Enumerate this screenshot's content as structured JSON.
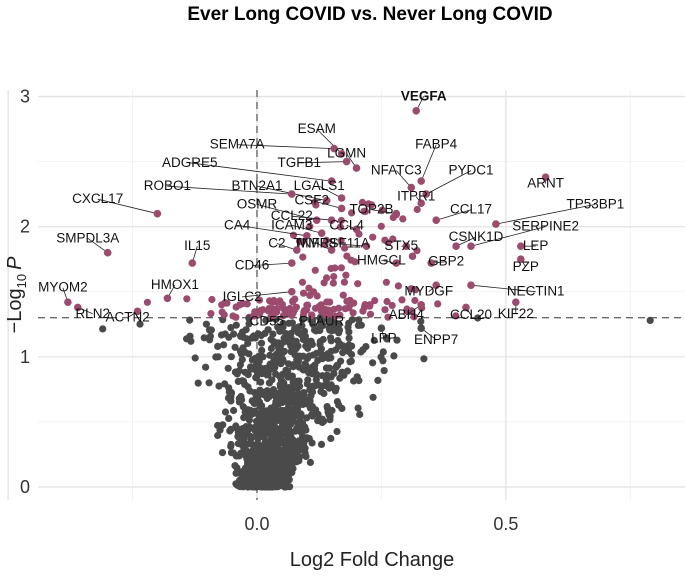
{
  "chart_data": {
    "type": "scatter",
    "title": "Ever Long COVID vs. Never Long COVID",
    "xlabel": "Log2 Fold Change",
    "ylabel_prefix": "−Log",
    "ylabel_sub": "10",
    "ylabel_var": "P",
    "xlim": [
      -0.44,
      0.86
    ],
    "ylim": [
      -0.1,
      3.05
    ],
    "xticks": [
      {
        "v": 0.0,
        "label": "0.0"
      },
      {
        "v": 0.5,
        "label": "0.5"
      }
    ],
    "yticks": [
      {
        "v": 0,
        "label": "0"
      },
      {
        "v": 1,
        "label": "1"
      },
      {
        "v": 2,
        "label": "2"
      },
      {
        "v": 3,
        "label": "3"
      }
    ],
    "threshold_y": 1.3,
    "colors": {
      "significant": "#9b4c6e",
      "nonsignificant": "#4a4a4a",
      "highlight": "#c8505a"
    },
    "labeled_points": [
      {
        "label": "VEGFA",
        "x": 0.32,
        "y": 2.89,
        "lx": 0.335,
        "ly": 2.97,
        "hl": true
      },
      {
        "label": "ESAM",
        "x": 0.17,
        "y": 2.56,
        "lx": 0.12,
        "ly": 2.72
      },
      {
        "label": "SEMA7A",
        "x": 0.155,
        "y": 2.6,
        "lx": -0.04,
        "ly": 2.6
      },
      {
        "label": "LGMN",
        "x": 0.2,
        "y": 2.45,
        "lx": 0.18,
        "ly": 2.53
      },
      {
        "label": "FABP4",
        "x": 0.33,
        "y": 2.35,
        "lx": 0.36,
        "ly": 2.6
      },
      {
        "label": "TGFB1",
        "x": 0.18,
        "y": 2.5,
        "lx": 0.085,
        "ly": 2.46
      },
      {
        "label": "ADGRE5",
        "x": 0.15,
        "y": 2.35,
        "lx": -0.135,
        "ly": 2.46
      },
      {
        "label": "NFATC3",
        "x": 0.31,
        "y": 2.3,
        "lx": 0.28,
        "ly": 2.4
      },
      {
        "label": "PYDC1",
        "x": 0.34,
        "y": 2.25,
        "lx": 0.43,
        "ly": 2.4
      },
      {
        "label": "BTN2A1",
        "x": 0.14,
        "y": 2.2,
        "lx": 0.0,
        "ly": 2.28
      },
      {
        "label": "LGALS1",
        "x": 0.17,
        "y": 2.22,
        "lx": 0.125,
        "ly": 2.28
      },
      {
        "label": "ROBO1",
        "x": 0.07,
        "y": 2.25,
        "lx": -0.18,
        "ly": 2.28
      },
      {
        "label": "ARNT",
        "x": 0.58,
        "y": 2.38,
        "lx": 0.58,
        "ly": 2.3
      },
      {
        "label": "CXCL17",
        "x": -0.2,
        "y": 2.1,
        "lx": -0.32,
        "ly": 2.18
      },
      {
        "label": "CSF2",
        "x": 0.17,
        "y": 2.14,
        "lx": 0.11,
        "ly": 2.17
      },
      {
        "label": "ITPR1",
        "x": 0.33,
        "y": 2.18,
        "lx": 0.32,
        "ly": 2.2
      },
      {
        "label": "OSMR",
        "x": 0.12,
        "y": 2.05,
        "lx": 0.0,
        "ly": 2.14
      },
      {
        "label": "TP53BP1",
        "x": 0.48,
        "y": 2.02,
        "lx": 0.68,
        "ly": 2.14
      },
      {
        "label": "TOP2B",
        "x": 0.28,
        "y": 2.1,
        "lx": 0.23,
        "ly": 2.1
      },
      {
        "label": "CCL17",
        "x": 0.36,
        "y": 2.05,
        "lx": 0.43,
        "ly": 2.1
      },
      {
        "label": "CCL22",
        "x": 0.15,
        "y": 2.05,
        "lx": 0.07,
        "ly": 2.05
      },
      {
        "label": "ICAM3",
        "x": 0.13,
        "y": 1.95,
        "lx": 0.07,
        "ly": 1.98
      },
      {
        "label": "CCL4",
        "x": 0.2,
        "y": 1.98,
        "lx": 0.18,
        "ly": 1.98
      },
      {
        "label": "SERPINE2",
        "x": 0.43,
        "y": 1.85,
        "lx": 0.58,
        "ly": 1.97
      },
      {
        "label": "CA4",
        "x": 0.1,
        "y": 1.93,
        "lx": -0.04,
        "ly": 1.98
      },
      {
        "label": "CSNK1D",
        "x": 0.4,
        "y": 1.85,
        "lx": 0.44,
        "ly": 1.89
      },
      {
        "label": "TNFRSF11A",
        "x": 0.22,
        "y": 1.85,
        "lx": 0.15,
        "ly": 1.84
      },
      {
        "label": "MMP8",
        "x": 0.15,
        "y": 1.82,
        "lx": 0.12,
        "ly": 1.84
      },
      {
        "label": "STX5",
        "x": 0.3,
        "y": 1.85,
        "lx": 0.29,
        "ly": 1.82
      },
      {
        "label": "C2",
        "x": 0.08,
        "y": 1.82,
        "lx": 0.04,
        "ly": 1.84
      },
      {
        "label": "SMPDL3A",
        "x": -0.3,
        "y": 1.8,
        "lx": -0.34,
        "ly": 1.88
      },
      {
        "label": "IL15",
        "x": -0.13,
        "y": 1.72,
        "lx": -0.12,
        "ly": 1.82
      },
      {
        "label": "LEP",
        "x": 0.53,
        "y": 1.85,
        "lx": 0.56,
        "ly": 1.82
      },
      {
        "label": "GBP2",
        "x": 0.35,
        "y": 1.72,
        "lx": 0.38,
        "ly": 1.7
      },
      {
        "label": "HMGCL",
        "x": 0.28,
        "y": 1.72,
        "lx": 0.25,
        "ly": 1.71
      },
      {
        "label": "PZP",
        "x": 0.53,
        "y": 1.75,
        "lx": 0.54,
        "ly": 1.66
      },
      {
        "label": "CD46",
        "x": 0.07,
        "y": 1.72,
        "lx": -0.01,
        "ly": 1.67
      },
      {
        "label": "HMOX1",
        "x": -0.18,
        "y": 1.45,
        "lx": -0.165,
        "ly": 1.52
      },
      {
        "label": "MYOM2",
        "x": -0.38,
        "y": 1.42,
        "lx": -0.39,
        "ly": 1.5
      },
      {
        "label": "MYDGF",
        "x": 0.36,
        "y": 1.55,
        "lx": 0.345,
        "ly": 1.47
      },
      {
        "label": "NECTIN1",
        "x": 0.43,
        "y": 1.55,
        "lx": 0.56,
        "ly": 1.47
      },
      {
        "label": "IGLC2",
        "x": 0.07,
        "y": 1.5,
        "lx": -0.03,
        "ly": 1.43
      },
      {
        "label": "KIF22",
        "x": 0.52,
        "y": 1.42,
        "lx": 0.52,
        "ly": 1.3
      },
      {
        "label": "CCL20",
        "x": 0.42,
        "y": 1.38,
        "lx": 0.43,
        "ly": 1.29
      },
      {
        "label": "ABH4",
        "x": 0.33,
        "y": 1.4,
        "lx": 0.3,
        "ly": 1.29
      },
      {
        "label": "RLN2",
        "x": -0.36,
        "y": 1.38,
        "lx": -0.33,
        "ly": 1.3
      },
      {
        "label": "ACTN2",
        "x": -0.24,
        "y": 1.35,
        "lx": -0.26,
        "ly": 1.27
      },
      {
        "label": "CD55",
        "x": 0.07,
        "y": 1.32,
        "lx": 0.02,
        "ly": 1.24
      },
      {
        "label": "PLAUR",
        "x": 0.11,
        "y": 1.32,
        "lx": 0.13,
        "ly": 1.24
      },
      {
        "label": "LPP",
        "x": 0.25,
        "y": 1.22,
        "lx": 0.255,
        "ly": 1.11
      },
      {
        "label": "ENPP7",
        "x": 0.33,
        "y": 1.22,
        "lx": 0.36,
        "ly": 1.1
      }
    ]
  }
}
